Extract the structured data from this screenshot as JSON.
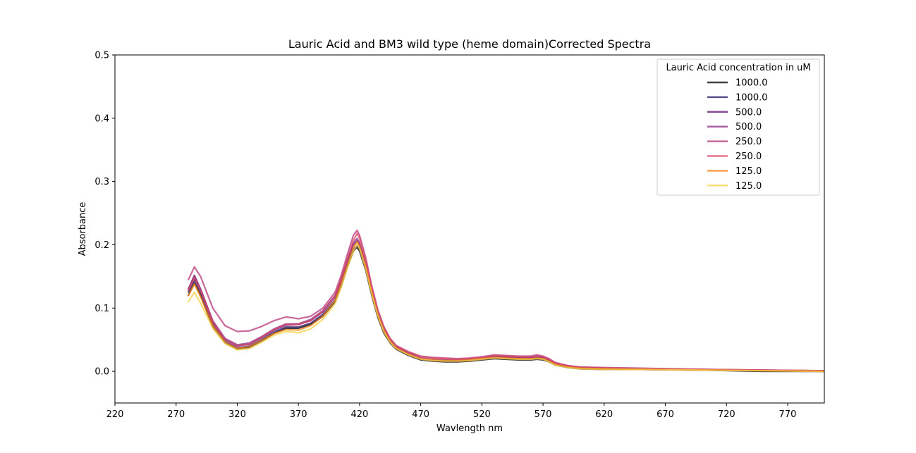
{
  "chart_data": {
    "type": "line",
    "title": "Lauric Acid and BM3 wild type (heme domain)Corrected Spectra",
    "xlabel": "Wavlength nm",
    "ylabel": "Absorbance",
    "xlim": [
      220,
      800
    ],
    "ylim": [
      -0.05,
      0.5
    ],
    "xticks": [
      220,
      270,
      320,
      370,
      420,
      470,
      520,
      570,
      620,
      670,
      720,
      770
    ],
    "yticks": [
      0.0,
      0.1,
      0.2,
      0.3,
      0.4,
      0.5
    ],
    "grid": false,
    "legend": {
      "title": "Lauric Acid concentration in uM",
      "placement": "top-right"
    },
    "x": [
      280,
      285,
      290,
      300,
      310,
      320,
      330,
      340,
      350,
      360,
      370,
      380,
      390,
      400,
      405,
      410,
      415,
      418,
      420,
      425,
      430,
      435,
      440,
      445,
      450,
      460,
      470,
      480,
      490,
      500,
      510,
      520,
      530,
      540,
      550,
      560,
      565,
      570,
      575,
      580,
      590,
      600,
      620,
      650,
      700,
      750,
      800
    ],
    "series": [
      {
        "name": "1000.0",
        "color": "#000004",
        "values": [
          0.12,
          0.14,
          0.12,
          0.07,
          0.045,
          0.035,
          0.038,
          0.048,
          0.06,
          0.068,
          0.068,
          0.074,
          0.087,
          0.11,
          0.135,
          0.165,
          0.19,
          0.196,
          0.19,
          0.16,
          0.12,
          0.085,
          0.06,
          0.045,
          0.035,
          0.025,
          0.018,
          0.016,
          0.015,
          0.015,
          0.016,
          0.018,
          0.02,
          0.019,
          0.018,
          0.018,
          0.019,
          0.018,
          0.015,
          0.01,
          0.006,
          0.004,
          0.003,
          0.003,
          0.002,
          0.0,
          0.0
        ]
      },
      {
        "name": "1000.0",
        "color": "#281064",
        "values": [
          0.125,
          0.145,
          0.125,
          0.075,
          0.047,
          0.037,
          0.04,
          0.05,
          0.062,
          0.07,
          0.07,
          0.076,
          0.09,
          0.113,
          0.138,
          0.168,
          0.193,
          0.199,
          0.193,
          0.163,
          0.122,
          0.087,
          0.062,
          0.046,
          0.036,
          0.026,
          0.019,
          0.017,
          0.016,
          0.016,
          0.017,
          0.019,
          0.021,
          0.02,
          0.019,
          0.019,
          0.02,
          0.019,
          0.016,
          0.011,
          0.007,
          0.005,
          0.004,
          0.003,
          0.002,
          0.001,
          0.0
        ]
      },
      {
        "name": "500.0",
        "color": "#5c126e",
        "values": [
          0.13,
          0.15,
          0.13,
          0.078,
          0.05,
          0.04,
          0.043,
          0.053,
          0.065,
          0.073,
          0.074,
          0.08,
          0.094,
          0.118,
          0.143,
          0.174,
          0.2,
          0.206,
          0.2,
          0.168,
          0.126,
          0.09,
          0.065,
          0.048,
          0.038,
          0.028,
          0.02,
          0.018,
          0.017,
          0.017,
          0.018,
          0.02,
          0.023,
          0.022,
          0.021,
          0.021,
          0.022,
          0.021,
          0.017,
          0.012,
          0.008,
          0.006,
          0.005,
          0.004,
          0.003,
          0.001,
          0.001
        ]
      },
      {
        "name": "500.0",
        "color": "#8c2981",
        "values": [
          0.13,
          0.152,
          0.13,
          0.08,
          0.052,
          0.042,
          0.045,
          0.055,
          0.067,
          0.075,
          0.075,
          0.082,
          0.096,
          0.12,
          0.146,
          0.177,
          0.203,
          0.21,
          0.203,
          0.171,
          0.128,
          0.092,
          0.066,
          0.049,
          0.039,
          0.029,
          0.021,
          0.019,
          0.018,
          0.018,
          0.019,
          0.021,
          0.024,
          0.023,
          0.022,
          0.022,
          0.023,
          0.022,
          0.018,
          0.013,
          0.009,
          0.006,
          0.005,
          0.004,
          0.003,
          0.002,
          0.001
        ]
      },
      {
        "name": "250.0",
        "color": "#b73779",
        "values": [
          0.145,
          0.165,
          0.15,
          0.1,
          0.072,
          0.063,
          0.064,
          0.071,
          0.08,
          0.086,
          0.083,
          0.087,
          0.1,
          0.125,
          0.152,
          0.185,
          0.215,
          0.223,
          0.215,
          0.18,
          0.135,
          0.097,
          0.07,
          0.052,
          0.041,
          0.031,
          0.024,
          0.022,
          0.021,
          0.02,
          0.021,
          0.023,
          0.026,
          0.025,
          0.024,
          0.024,
          0.026,
          0.024,
          0.02,
          0.014,
          0.009,
          0.007,
          0.006,
          0.005,
          0.003,
          0.002,
          0.001
        ]
      },
      {
        "name": "250.0",
        "color": "#de4968",
        "values": [
          0.128,
          0.148,
          0.128,
          0.078,
          0.05,
          0.04,
          0.043,
          0.054,
          0.066,
          0.074,
          0.074,
          0.08,
          0.095,
          0.119,
          0.146,
          0.178,
          0.207,
          0.218,
          0.21,
          0.175,
          0.132,
          0.095,
          0.069,
          0.051,
          0.04,
          0.03,
          0.023,
          0.021,
          0.02,
          0.019,
          0.02,
          0.022,
          0.025,
          0.024,
          0.023,
          0.023,
          0.025,
          0.023,
          0.019,
          0.013,
          0.009,
          0.006,
          0.005,
          0.004,
          0.003,
          0.002,
          0.001
        ]
      },
      {
        "name": "125.0",
        "color": "#f78311",
        "values": [
          0.12,
          0.138,
          0.118,
          0.072,
          0.046,
          0.036,
          0.039,
          0.049,
          0.06,
          0.066,
          0.065,
          0.072,
          0.087,
          0.112,
          0.138,
          0.168,
          0.196,
          0.205,
          0.198,
          0.166,
          0.125,
          0.089,
          0.064,
          0.047,
          0.037,
          0.027,
          0.02,
          0.018,
          0.017,
          0.017,
          0.018,
          0.02,
          0.022,
          0.021,
          0.02,
          0.02,
          0.021,
          0.02,
          0.016,
          0.011,
          0.007,
          0.005,
          0.004,
          0.003,
          0.002,
          0.001,
          0.0
        ]
      },
      {
        "name": "125.0",
        "color": "#f5d046",
        "values": [
          0.11,
          0.125,
          0.108,
          0.068,
          0.044,
          0.034,
          0.036,
          0.046,
          0.057,
          0.063,
          0.061,
          0.067,
          0.082,
          0.107,
          0.133,
          0.163,
          0.19,
          0.2,
          0.194,
          0.162,
          0.122,
          0.087,
          0.062,
          0.046,
          0.036,
          0.026,
          0.019,
          0.017,
          0.016,
          0.016,
          0.017,
          0.019,
          0.021,
          0.02,
          0.019,
          0.019,
          0.02,
          0.019,
          0.015,
          0.01,
          0.006,
          0.004,
          0.003,
          0.003,
          0.002,
          0.001,
          0.0
        ]
      }
    ]
  }
}
